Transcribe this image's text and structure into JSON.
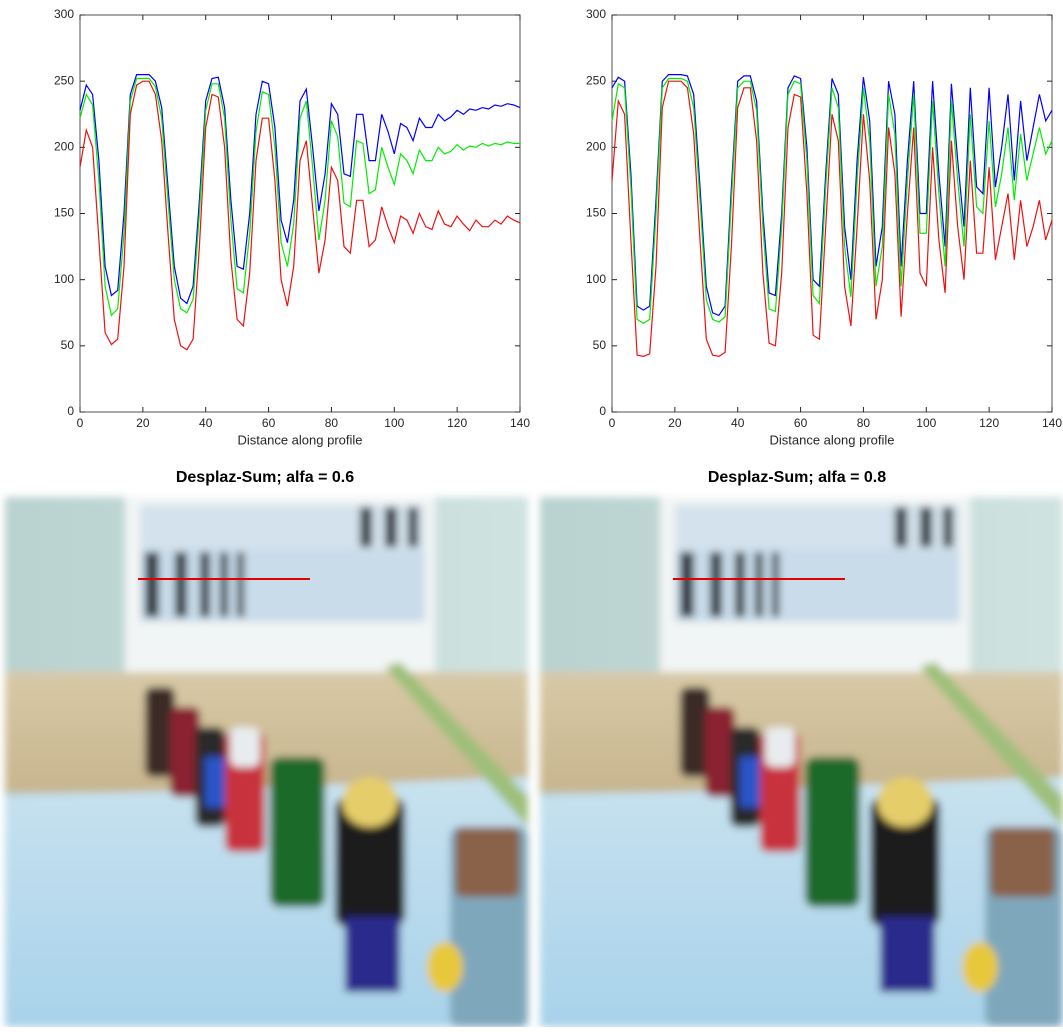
{
  "chart_data": [
    {
      "type": "line",
      "xlabel": "Distance along profile",
      "x": [
        0,
        2,
        4,
        6,
        8,
        10,
        12,
        14,
        16,
        18,
        20,
        22,
        24,
        26,
        28,
        30,
        32,
        34,
        36,
        38,
        40,
        42,
        44,
        46,
        48,
        50,
        52,
        54,
        56,
        58,
        60,
        62,
        64,
        66,
        68,
        70,
        72,
        74,
        76,
        78,
        80,
        82,
        84,
        86,
        88,
        90,
        92,
        94,
        96,
        98,
        100,
        102,
        104,
        106,
        108,
        110,
        112,
        114,
        116,
        118,
        120,
        122,
        124,
        126,
        128,
        130,
        132,
        134,
        136,
        138,
        140
      ],
      "series": [
        {
          "color": "#0000ff",
          "values": [
            228,
            247,
            240,
            190,
            110,
            88,
            92,
            150,
            240,
            255,
            255,
            255,
            250,
            230,
            170,
            110,
            86,
            82,
            95,
            160,
            235,
            252,
            253,
            230,
            160,
            110,
            108,
            150,
            225,
            250,
            248,
            215,
            145,
            128,
            160,
            235,
            244,
            200,
            152,
            180,
            233,
            225,
            180,
            178,
            225,
            225,
            190,
            190,
            225,
            212,
            195,
            218,
            215,
            205,
            222,
            215,
            215,
            225,
            220,
            223,
            228,
            225,
            229,
            228,
            230,
            229,
            232,
            231,
            233,
            232,
            230
          ]
        },
        {
          "color": "#00ee00",
          "values": [
            222,
            240,
            232,
            175,
            95,
            73,
            78,
            135,
            235,
            252,
            252,
            252,
            246,
            222,
            160,
            100,
            78,
            75,
            85,
            150,
            228,
            248,
            248,
            222,
            145,
            93,
            90,
            135,
            212,
            242,
            240,
            200,
            128,
            110,
            142,
            222,
            235,
            185,
            130,
            160,
            220,
            208,
            158,
            155,
            205,
            203,
            165,
            168,
            200,
            185,
            172,
            195,
            190,
            180,
            198,
            190,
            190,
            200,
            195,
            197,
            202,
            198,
            201,
            200,
            203,
            201,
            203,
            202,
            204,
            203,
            203
          ]
        },
        {
          "color": "#ee1111",
          "values": [
            185,
            213,
            200,
            130,
            60,
            51,
            55,
            110,
            225,
            247,
            250,
            250,
            240,
            205,
            135,
            70,
            50,
            47,
            55,
            125,
            215,
            240,
            238,
            200,
            115,
            70,
            65,
            105,
            190,
            222,
            222,
            175,
            100,
            80,
            110,
            190,
            205,
            155,
            105,
            130,
            185,
            175,
            125,
            120,
            160,
            160,
            125,
            130,
            155,
            140,
            128,
            148,
            145,
            135,
            150,
            140,
            138,
            152,
            142,
            140,
            148,
            142,
            137,
            145,
            140,
            140,
            145,
            142,
            148,
            145,
            143
          ]
        }
      ],
      "xlim": [
        0,
        140
      ],
      "xticks": [
        0,
        20,
        40,
        60,
        80,
        100,
        120,
        140
      ],
      "ylim": [
        0,
        300
      ],
      "yticks": [
        0,
        50,
        100,
        150,
        200,
        250,
        300
      ]
    },
    {
      "type": "line",
      "xlabel": "Distance along profile",
      "x": [
        0,
        2,
        4,
        6,
        8,
        10,
        12,
        14,
        16,
        18,
        20,
        22,
        24,
        26,
        28,
        30,
        32,
        34,
        36,
        38,
        40,
        42,
        44,
        46,
        48,
        50,
        52,
        54,
        56,
        58,
        60,
        62,
        64,
        66,
        68,
        70,
        72,
        74,
        76,
        78,
        80,
        82,
        84,
        86,
        88,
        90,
        92,
        94,
        96,
        98,
        100,
        102,
        104,
        106,
        108,
        110,
        112,
        114,
        116,
        118,
        120,
        122,
        124,
        126,
        128,
        130,
        132,
        134,
        136,
        138,
        140
      ],
      "series": [
        {
          "color": "#0000ff",
          "values": [
            245,
            253,
            250,
            180,
            80,
            77,
            80,
            160,
            250,
            255,
            255,
            255,
            254,
            240,
            170,
            95,
            75,
            73,
            80,
            170,
            250,
            254,
            254,
            235,
            150,
            90,
            88,
            150,
            245,
            254,
            252,
            200,
            100,
            95,
            180,
            252,
            240,
            140,
            100,
            190,
            253,
            220,
            110,
            140,
            250,
            225,
            110,
            190,
            250,
            150,
            150,
            250,
            180,
            125,
            248,
            190,
            140,
            245,
            170,
            165,
            245,
            170,
            200,
            240,
            175,
            235,
            190,
            215,
            240,
            220,
            228
          ]
        },
        {
          "color": "#00ee00",
          "values": [
            220,
            248,
            245,
            170,
            70,
            67,
            70,
            150,
            245,
            252,
            252,
            252,
            250,
            230,
            160,
            85,
            70,
            68,
            72,
            160,
            245,
            250,
            250,
            228,
            140,
            78,
            76,
            140,
            240,
            250,
            248,
            190,
            88,
            82,
            170,
            245,
            230,
            125,
            87,
            175,
            245,
            205,
            95,
            125,
            240,
            210,
            95,
            175,
            240,
            135,
            135,
            235,
            165,
            110,
            235,
            175,
            125,
            225,
            155,
            150,
            220,
            155,
            180,
            215,
            160,
            210,
            175,
            195,
            215,
            195,
            205
          ]
        },
        {
          "color": "#ee1111",
          "values": [
            175,
            235,
            225,
            130,
            43,
            42,
            44,
            110,
            230,
            250,
            250,
            250,
            245,
            210,
            130,
            55,
            43,
            42,
            45,
            125,
            230,
            245,
            245,
            205,
            105,
            52,
            50,
            105,
            215,
            240,
            238,
            165,
            58,
            55,
            140,
            225,
            205,
            95,
            65,
            140,
            225,
            175,
            70,
            100,
            215,
            180,
            72,
            150,
            215,
            105,
            95,
            200,
            130,
            90,
            205,
            140,
            100,
            190,
            120,
            120,
            185,
            115,
            140,
            165,
            115,
            160,
            125,
            140,
            160,
            130,
            145
          ]
        }
      ],
      "xlim": [
        0,
        140
      ],
      "xticks": [
        0,
        20,
        40,
        60,
        80,
        100,
        120,
        140
      ],
      "ylim": [
        0,
        300
      ],
      "yticks": [
        0,
        50,
        100,
        150,
        200,
        250,
        300
      ]
    }
  ],
  "images": [
    {
      "title": "Desplaz-Sum;  alfa = 0.6"
    },
    {
      "title": "Desplaz-Sum;  alfa = 0.8"
    }
  ]
}
